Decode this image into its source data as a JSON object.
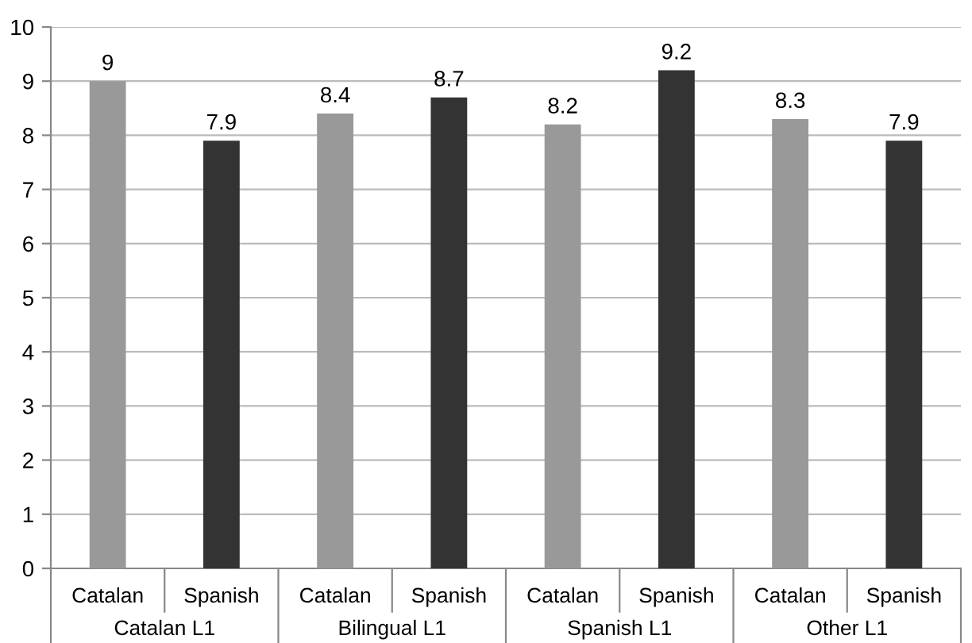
{
  "chart_data": {
    "type": "bar",
    "categories": [
      "Catalan L1",
      "Bilingual L1",
      "Spanish L1",
      "Other L1"
    ],
    "series": [
      {
        "name": "Catalan",
        "color": "#999999",
        "values": [
          9,
          8.4,
          8.2,
          8.3
        ]
      },
      {
        "name": "Spanish",
        "color": "#333333",
        "values": [
          7.9,
          8.7,
          9.2,
          7.9
        ]
      }
    ],
    "ylim": [
      0,
      10
    ],
    "yticks": [
      0,
      1,
      2,
      3,
      4,
      5,
      6,
      7,
      8,
      9,
      10
    ],
    "grid": "y",
    "data_labels": true
  }
}
